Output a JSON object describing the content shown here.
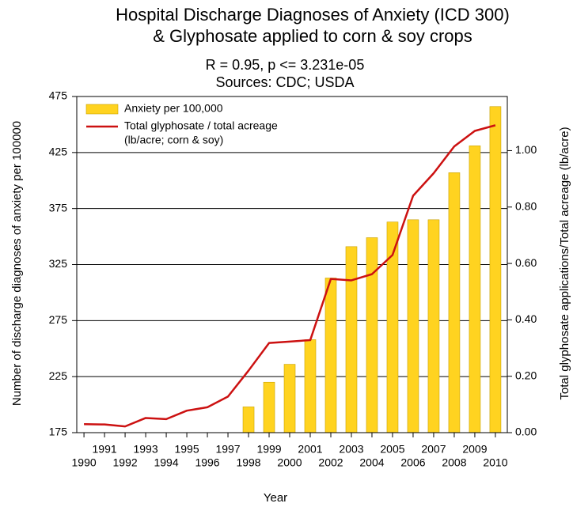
{
  "chart_data": {
    "type": "bar",
    "title": [
      "Hospital Discharge Diagnoses of Anxiety (ICD 300)",
      "& Glyphosate applied to corn & soy crops"
    ],
    "subtitle": [
      "R = 0.95, p <= 3.231e-05",
      "Sources: CDC; USDA"
    ],
    "x_label": "Year",
    "y_label": "Number of discharge diagnoses of anxiety per 100000",
    "y2_label": "Total glyphosate applications/Total acreage (lb/acre)",
    "x": [
      1990,
      1991,
      1992,
      1993,
      1994,
      1995,
      1996,
      1997,
      1998,
      1999,
      2000,
      2001,
      2002,
      2003,
      2004,
      2005,
      2006,
      2007,
      2008,
      2009,
      2010
    ],
    "series": [
      {
        "name": "Anxiety per 100,000",
        "type": "bar",
        "color": "#ffd320",
        "values": [
          null,
          null,
          null,
          null,
          null,
          null,
          null,
          null,
          198,
          220,
          236,
          258,
          313,
          341,
          349,
          363,
          365,
          365,
          407,
          431,
          466
        ]
      },
      {
        "name": "Total glyphosate / total acreage",
        "legend_note": "(lb/acre; corn & soy)",
        "type": "line",
        "axis": "y2",
        "color": "#cc1111",
        "values": [
          0.03,
          0.029,
          0.022,
          0.052,
          0.048,
          0.078,
          0.09,
          0.128,
          0.22,
          0.318,
          0.323,
          0.328,
          0.545,
          0.54,
          0.562,
          0.63,
          0.84,
          0.92,
          1.015,
          1.07,
          1.09
        ]
      }
    ],
    "xlim": [
      1989.65,
      2010.58
    ],
    "xticks": [
      1990,
      1991,
      1992,
      1993,
      1994,
      1995,
      1996,
      1997,
      1998,
      1999,
      2000,
      2001,
      2002,
      2003,
      2004,
      2005,
      2006,
      2007,
      2008,
      2009,
      2010
    ],
    "ylim": [
      175,
      475
    ],
    "yticks": [
      175,
      225,
      275,
      325,
      375,
      425,
      475
    ],
    "y2lim": [
      0,
      1.192
    ],
    "y2ticks": [
      {
        "value": 0,
        "label": "0.00"
      },
      {
        "value": 0.2,
        "label": "0.20"
      },
      {
        "value": 0.4,
        "label": "0.40"
      },
      {
        "value": 0.6,
        "label": "0.60"
      },
      {
        "value": 0.8,
        "label": "0.80"
      },
      {
        "value": 1.0,
        "label": "1.00"
      }
    ],
    "grid": true,
    "legend": "upper left"
  }
}
